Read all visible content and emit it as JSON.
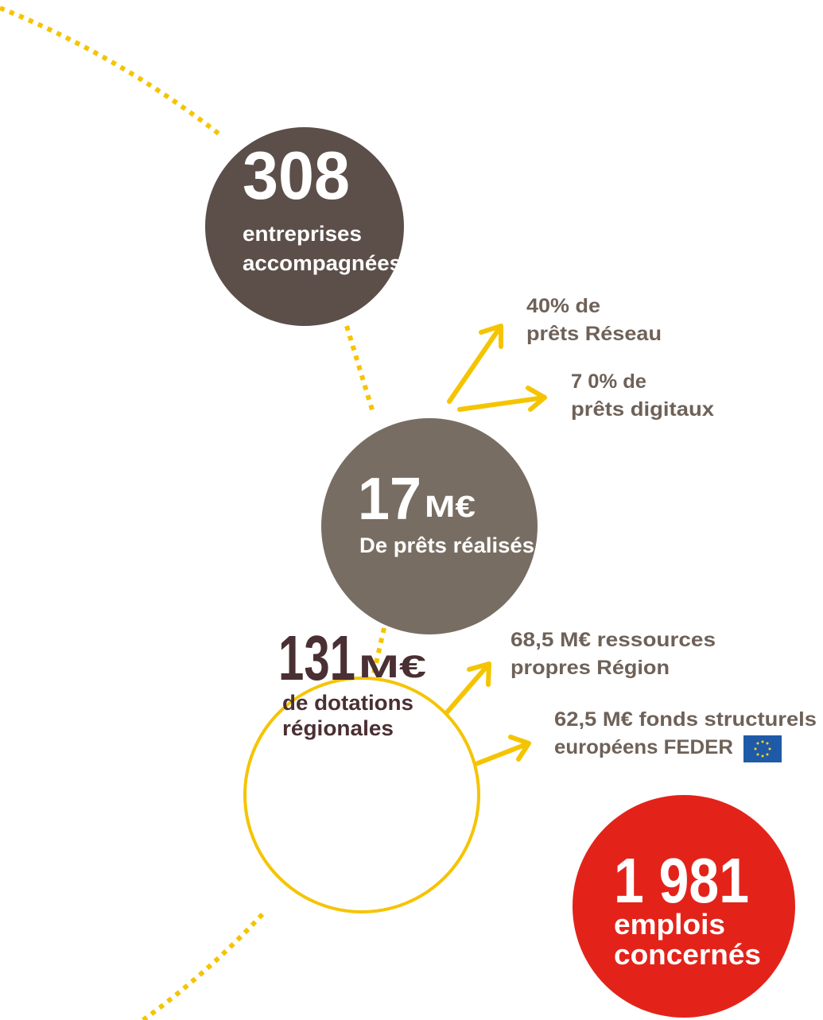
{
  "nodes": [
    {
      "value": "308",
      "label": [
        "entreprises",
        "accompagnées"
      ]
    },
    {
      "value": "17",
      "unit": "M€",
      "label": [
        "De prêts réalisés"
      ]
    },
    {
      "value": "131",
      "unit": "M€",
      "label": [
        "de dotations",
        "régionales"
      ]
    },
    {
      "value": "1 981",
      "label": [
        "emplois",
        "concernés"
      ]
    }
  ],
  "notes": [
    {
      "lines": [
        "40% de",
        "prêts Réseau"
      ]
    },
    {
      "lines": [
        "7 0% de",
        "prêts digitaux"
      ]
    },
    {
      "lines": [
        "68,5 M€ ressources",
        "propres Région"
      ]
    },
    {
      "lines": [
        "62,5 M€ fonds structurels",
        "européens FEDER"
      ]
    }
  ]
}
